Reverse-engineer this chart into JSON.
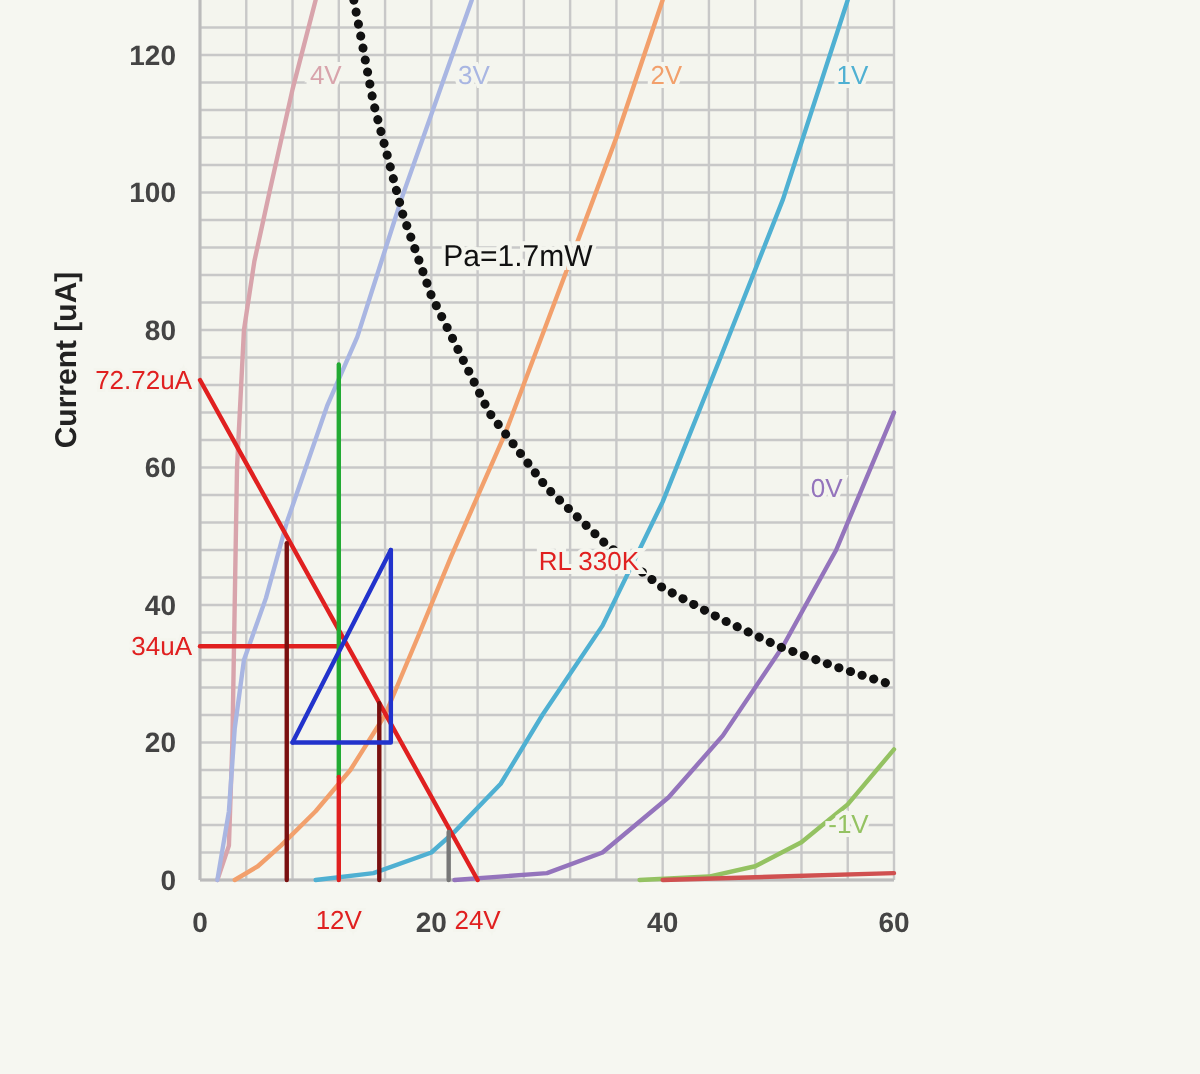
{
  "chart_data": {
    "type": "line",
    "ylabel": "Current [uA]",
    "xlim": [
      0,
      60
    ],
    "ylim": [
      0,
      128
    ],
    "xticks": [
      0,
      {
        "value": 4,
        "label": null
      },
      {
        "value": 8,
        "label": null
      },
      {
        "value": 12,
        "label": null
      },
      {
        "value": 16,
        "label": null
      },
      20,
      {
        "value": 24,
        "label": null
      },
      {
        "value": 28,
        "label": null
      },
      {
        "value": 32,
        "label": null
      },
      {
        "value": 36,
        "label": null
      },
      40,
      {
        "value": 44,
        "label": null
      },
      {
        "value": 48,
        "label": null
      },
      {
        "value": 52,
        "label": null
      },
      {
        "value": 56,
        "label": null
      },
      60
    ],
    "yticks": [
      0,
      {
        "value": 4,
        "label": null
      },
      {
        "value": 8,
        "label": null
      },
      {
        "value": 12,
        "label": null
      },
      {
        "value": 16,
        "label": null
      },
      20,
      {
        "value": 24,
        "label": null
      },
      {
        "value": 28,
        "label": null
      },
      {
        "value": 32,
        "label": null
      },
      {
        "value": 36,
        "label": null
      },
      40,
      {
        "value": 44,
        "label": null
      },
      {
        "value": 48,
        "label": null
      },
      {
        "value": 52,
        "label": null
      },
      {
        "value": 56,
        "label": null
      },
      60,
      {
        "value": 64,
        "label": null
      },
      {
        "value": 68,
        "label": null
      },
      {
        "value": 72,
        "label": null
      },
      {
        "value": 76,
        "label": null
      },
      80,
      {
        "value": 84,
        "label": null
      },
      {
        "value": 88,
        "label": null
      },
      {
        "value": 92,
        "label": null
      },
      {
        "value": 96,
        "label": null
      },
      100,
      {
        "value": 104,
        "label": null
      },
      {
        "value": 108,
        "label": null
      },
      {
        "value": 112,
        "label": null
      },
      {
        "value": 116,
        "label": null
      },
      120,
      {
        "value": 124,
        "label": null
      }
    ],
    "grid": true,
    "series": [
      {
        "name": "4V",
        "color": "#d8a4ac",
        "x": [
          1.5,
          2.5,
          2.8,
          3,
          3.2,
          3.8,
          4.7,
          6,
          8,
          10
        ],
        "values": [
          0,
          5,
          20,
          40,
          60,
          80,
          90,
          100,
          115,
          128
        ]
      },
      {
        "name": "3V",
        "color": "#a9b6e2",
        "x": [
          1.5,
          2.5,
          3,
          3.8,
          5.7,
          7.5,
          11,
          13.6,
          17.4,
          23.5
        ],
        "values": [
          0,
          10,
          22,
          32,
          41,
          52,
          69,
          79,
          99,
          128
        ]
      },
      {
        "name": "2V",
        "color": "#f2a06c",
        "x": [
          3,
          5,
          7,
          10,
          13,
          16,
          19,
          21.7,
          26.4,
          32,
          36,
          40
        ],
        "values": [
          0,
          2,
          5,
          10,
          16,
          24,
          36,
          47,
          65,
          90,
          108,
          128
        ]
      },
      {
        "name": "1V",
        "color": "#4fb0d2",
        "x": [
          10,
          15,
          20,
          22,
          26,
          29.6,
          34.8,
          40,
          45,
          50.4,
          56
        ],
        "values": [
          0,
          1,
          4,
          7,
          14,
          24,
          37,
          55,
          76,
          99,
          128
        ]
      },
      {
        "name": "0V",
        "color": "#9474bc",
        "x": [
          22,
          30,
          34.8,
          40.5,
          45.2,
          50.4,
          55,
          60
        ],
        "values": [
          0,
          1,
          4,
          12,
          21,
          34,
          48,
          68
        ]
      },
      {
        "name": "-1V",
        "color": "#94c262",
        "x": [
          38,
          44,
          48,
          52,
          56,
          60
        ],
        "values": [
          0,
          0.5,
          2,
          5.5,
          11,
          19
        ]
      },
      {
        "color": "#d05050",
        "x": [
          40,
          50,
          60
        ],
        "values": [
          0,
          0.5,
          1
        ]
      },
      {
        "name": "Pa=1.7mW",
        "color": "#111111",
        "line_style": "dotted",
        "x": [
          13.3,
          15,
          17.5,
          20,
          25,
          30,
          35,
          40,
          45,
          50,
          55,
          60
        ],
        "values": [
          128,
          113,
          97,
          85,
          68,
          57,
          49,
          42.5,
          38,
          34,
          31,
          28.3
        ]
      },
      {
        "name": "RL 330K",
        "color": "#e02020",
        "x": [
          0,
          24
        ],
        "values": [
          72.72,
          0
        ]
      },
      {
        "color": "#e02020",
        "x": [
          0,
          12
        ],
        "values": [
          34,
          34
        ]
      },
      {
        "color": "#22aa33",
        "x": [
          12,
          12
        ],
        "values": [
          15,
          75
        ]
      },
      {
        "color": "#e02020",
        "x": [
          12,
          12
        ],
        "values": [
          0,
          15
        ]
      },
      {
        "color": "#7a1010",
        "x": [
          7.5,
          7.5
        ],
        "values": [
          0,
          49
        ]
      },
      {
        "color": "#7a1010",
        "x": [
          15.5,
          15.5
        ],
        "values": [
          0,
          25.7
        ]
      },
      {
        "color": "#777777",
        "x": [
          21.5,
          21.5
        ],
        "values": [
          0,
          7
        ]
      },
      {
        "color": "#2233cc",
        "x": [
          8,
          16.5,
          16.5
        ],
        "values": [
          20,
          20,
          48
        ]
      },
      {
        "color": "#2233cc",
        "x": [
          8,
          16.5
        ],
        "values": [
          20,
          48
        ]
      }
    ],
    "annotations": [
      {
        "text": "72.72uA",
        "x": 0,
        "y": 72.72
      },
      {
        "text": "34uA",
        "x": 0,
        "y": 34
      },
      {
        "text": "12V",
        "x": 12,
        "y": 0
      },
      {
        "text": "24V",
        "x": 24,
        "y": 0
      }
    ]
  }
}
